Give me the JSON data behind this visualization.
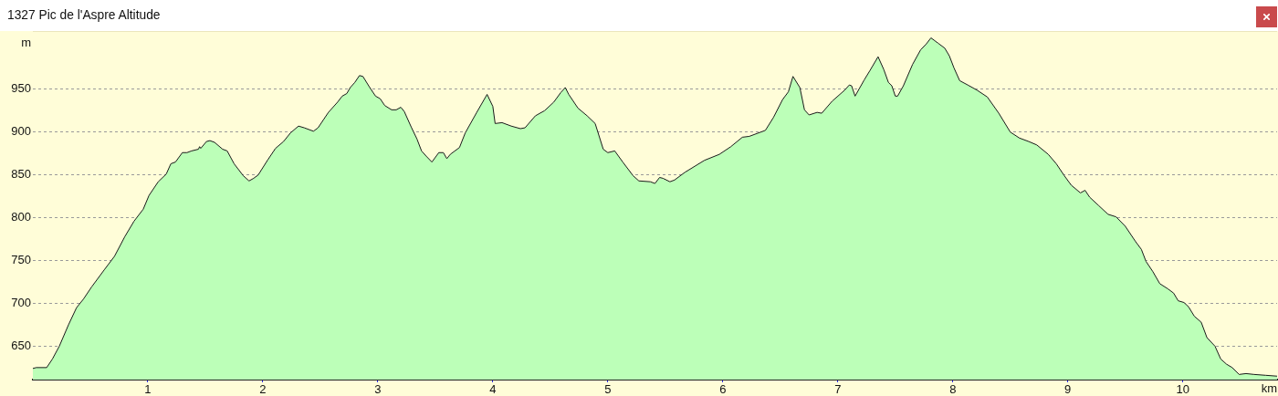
{
  "chart_data": {
    "type": "area",
    "title": "1327 Pic de l'Aspre Altitude",
    "xlabel": "km",
    "ylabel": "m",
    "color": "#bcffb8",
    "x": [
      0,
      0.03,
      0.12,
      0.17,
      0.23,
      0.31,
      0.38,
      0.44,
      0.51,
      0.62,
      0.71,
      0.8,
      0.88,
      0.96,
      1.01,
      1.09,
      1.16,
      1.2,
      1.24,
      1.3,
      1.34,
      1.38,
      1.44,
      1.45,
      1.46,
      1.51,
      1.54,
      1.58,
      1.65,
      1.69,
      1.75,
      1.83,
      1.88,
      1.92,
      1.96,
      2.04,
      2.11,
      2.18,
      2.24,
      2.31,
      2.36,
      2.44,
      2.48,
      2.57,
      2.65,
      2.69,
      2.73,
      2.76,
      2.8,
      2.84,
      2.87,
      2.93,
      2.98,
      3.02,
      3.06,
      3.12,
      3.16,
      3.2,
      3.23,
      3.29,
      3.34,
      3.38,
      3.42,
      3.47,
      3.53,
      3.57,
      3.6,
      3.63,
      3.71,
      3.76,
      3.86,
      3.95,
      4,
      4.02,
      4.08,
      4.16,
      4.24,
      4.28,
      4.37,
      4.45,
      4.53,
      4.59,
      4.63,
      4.66,
      4.74,
      4.82,
      4.89,
      4.96,
      5,
      5.06,
      5.13,
      5.22,
      5.27,
      5.37,
      5.41,
      5.45,
      5.48,
      5.54,
      5.58,
      5.67,
      5.84,
      5.97,
      6.07,
      6.17,
      6.23,
      6.37,
      6.44,
      6.52,
      6.57,
      6.61,
      6.67,
      6.71,
      6.75,
      6.82,
      6.86,
      6.95,
      7.06,
      7.1,
      7.12,
      7.15,
      7.23,
      7.28,
      7.35,
      7.4,
      7.44,
      7.47,
      7.5,
      7.52,
      7.57,
      7.65,
      7.72,
      7.77,
      7.81,
      7.87,
      7.93,
      7.97,
      8.01,
      8.06,
      8.13,
      8.21,
      8.3,
      8.4,
      8.5,
      8.58,
      8.66,
      8.73,
      8.83,
      8.9,
      8.97,
      9.03,
      9.11,
      9.15,
      9.19,
      9.27,
      9.35,
      9.42,
      9.5,
      9.59,
      9.64,
      9.68,
      9.74,
      9.8,
      9.87,
      9.92,
      9.96,
      10.01,
      10.05,
      10.1,
      10.16,
      10.21,
      10.28,
      10.33,
      10.38,
      10.43,
      10.49,
      10.55,
      10.62,
      10.72,
      10.82
    ],
    "values": [
      624,
      625,
      625,
      635,
      650,
      675,
      695,
      705,
      719,
      739,
      755,
      778,
      796,
      810,
      826,
      842,
      851,
      863,
      865,
      876,
      876,
      878,
      880,
      883,
      881,
      889,
      890,
      888,
      880,
      878,
      863,
      849,
      843,
      846,
      850,
      867,
      881,
      889,
      899,
      907,
      905,
      901,
      905,
      923,
      935,
      942,
      945,
      952,
      958,
      966,
      965,
      952,
      942,
      939,
      931,
      926,
      926,
      929,
      924,
      906,
      892,
      878,
      872,
      865,
      876,
      876,
      869,
      874,
      882,
      899,
      923,
      944,
      930,
      910,
      911,
      907,
      904,
      905,
      919,
      925,
      935,
      946,
      952,
      944,
      928,
      919,
      910,
      880,
      876,
      878,
      865,
      849,
      843,
      842,
      840,
      847,
      846,
      842,
      844,
      853,
      867,
      874,
      883,
      894,
      895,
      902,
      917,
      938,
      947,
      965,
      952,
      926,
      920,
      923,
      922,
      936,
      949,
      955,
      954,
      942,
      961,
      972,
      988,
      973,
      958,
      954,
      942,
      942,
      954,
      979,
      996,
      1003,
      1010,
      1004,
      998,
      989,
      975,
      960,
      955,
      949,
      941,
      922,
      900,
      893,
      889,
      885,
      874,
      863,
      849,
      838,
      829,
      832,
      824,
      814,
      804,
      801,
      790,
      772,
      763,
      749,
      737,
      723,
      717,
      712,
      703,
      701,
      696,
      685,
      678,
      660,
      650,
      635,
      629,
      625,
      617,
      618,
      617,
      616,
      615
    ],
    "xlim": [
      0,
      10.82
    ],
    "ylim": [
      611,
      1018
    ],
    "xticks": [
      1,
      2,
      3,
      4,
      5,
      6,
      7,
      8,
      9,
      10
    ],
    "yticks": [
      650,
      700,
      750,
      800,
      850,
      900,
      950
    ],
    "grid": "y"
  }
}
